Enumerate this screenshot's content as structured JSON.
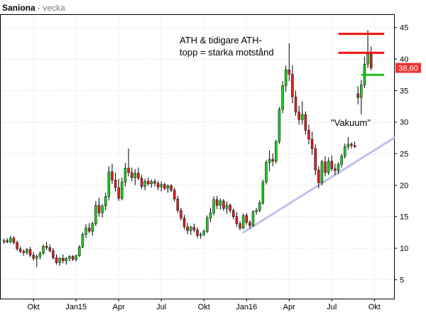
{
  "header": {
    "name": "Saniona",
    "separator": " - ",
    "period": "vecka"
  },
  "chart_data": {
    "type": "candlestick",
    "y_ticks": [
      5,
      10,
      15,
      20,
      25,
      30,
      35,
      40,
      45
    ],
    "ylim": [
      2,
      47
    ],
    "x_ticks": [
      {
        "label": "Okt",
        "week": 10
      },
      {
        "label": "Jan15",
        "week": 23
      },
      {
        "label": "Apr",
        "week": 36
      },
      {
        "label": "Jul",
        "week": 49
      },
      {
        "label": "Okt",
        "week": 62
      },
      {
        "label": "Jan16",
        "week": 75
      },
      {
        "label": "Apr",
        "week": 88
      },
      {
        "label": "Jul",
        "week": 101
      },
      {
        "label": "Okt",
        "week": 114
      }
    ],
    "xlim": [
      0,
      120
    ],
    "last_price": "38,60",
    "colors": {
      "up": "#22cc22",
      "down": "#dd2222",
      "resistance": "#ee1111",
      "support": "#22bb22",
      "trend": "#c0c0ee",
      "price_tag": "#ee3333"
    },
    "candles": [
      [
        11.0,
        11.5,
        10.7,
        11.2
      ],
      [
        11.2,
        11.6,
        10.8,
        11.0
      ],
      [
        11.0,
        12.0,
        10.8,
        11.6
      ],
      [
        11.6,
        11.9,
        10.6,
        10.9
      ],
      [
        10.9,
        11.2,
        9.6,
        9.9
      ],
      [
        9.9,
        10.3,
        9.2,
        9.5
      ],
      [
        9.5,
        9.8,
        8.8,
        9.3
      ],
      [
        9.3,
        10.0,
        9.0,
        9.8
      ],
      [
        9.8,
        10.2,
        8.6,
        8.9
      ],
      [
        8.9,
        9.4,
        8.0,
        8.4
      ],
      [
        8.4,
        9.0,
        7.0,
        8.7
      ],
      [
        8.7,
        9.5,
        8.2,
        9.2
      ],
      [
        9.2,
        10.6,
        9.0,
        10.3
      ],
      [
        10.3,
        11.0,
        9.7,
        10.1
      ],
      [
        10.1,
        10.6,
        9.3,
        9.6
      ],
      [
        9.6,
        10.0,
        8.2,
        8.5
      ],
      [
        8.5,
        9.0,
        7.4,
        7.7
      ],
      [
        7.7,
        8.6,
        7.2,
        8.4
      ],
      [
        8.4,
        9.0,
        7.6,
        8.0
      ],
      [
        8.0,
        8.6,
        7.4,
        8.4
      ],
      [
        8.4,
        8.9,
        7.9,
        8.7
      ],
      [
        8.7,
        8.9,
        8.0,
        8.2
      ],
      [
        8.2,
        9.0,
        7.9,
        8.8
      ],
      [
        8.8,
        10.5,
        8.6,
        10.2
      ],
      [
        10.2,
        12.5,
        10.0,
        12.2
      ],
      [
        12.2,
        13.8,
        11.6,
        13.2
      ],
      [
        13.2,
        14.0,
        12.4,
        12.7
      ],
      [
        12.7,
        14.2,
        12.0,
        13.9
      ],
      [
        13.9,
        17.5,
        13.5,
        16.8
      ],
      [
        16.8,
        18.0,
        15.0,
        15.6
      ],
      [
        15.6,
        17.0,
        14.9,
        16.7
      ],
      [
        16.7,
        18.8,
        16.0,
        18.2
      ],
      [
        18.2,
        23.0,
        17.6,
        22.1
      ],
      [
        22.1,
        23.4,
        20.2,
        20.8
      ],
      [
        20.8,
        22.0,
        19.0,
        19.6
      ],
      [
        19.6,
        21.0,
        17.5,
        17.9
      ],
      [
        17.9,
        21.2,
        17.6,
        20.5
      ],
      [
        20.5,
        23.5,
        19.8,
        22.7
      ],
      [
        22.7,
        25.8,
        21.4,
        22.0
      ],
      [
        22.0,
        22.8,
        20.6,
        21.2
      ],
      [
        21.2,
        22.5,
        20.0,
        21.9
      ],
      [
        21.9,
        22.8,
        20.8,
        21.1
      ],
      [
        21.1,
        21.6,
        19.4,
        19.8
      ],
      [
        19.8,
        21.0,
        19.2,
        20.6
      ],
      [
        20.6,
        21.2,
        19.9,
        20.2
      ],
      [
        20.2,
        20.9,
        19.6,
        20.6
      ],
      [
        20.6,
        21.0,
        19.8,
        20.3
      ],
      [
        20.3,
        20.7,
        19.2,
        19.7
      ],
      [
        19.7,
        20.6,
        19.0,
        20.1
      ],
      [
        20.1,
        20.4,
        19.2,
        19.5
      ],
      [
        19.5,
        20.1,
        18.8,
        19.9
      ],
      [
        19.9,
        20.2,
        18.9,
        19.2
      ],
      [
        19.2,
        19.6,
        17.4,
        17.8
      ],
      [
        17.8,
        18.3,
        15.6,
        16.0
      ],
      [
        16.0,
        16.4,
        14.4,
        14.8
      ],
      [
        14.8,
        15.3,
        13.0,
        13.4
      ],
      [
        13.4,
        14.0,
        12.2,
        12.8
      ],
      [
        12.8,
        13.6,
        12.1,
        13.3
      ],
      [
        13.3,
        13.9,
        12.5,
        12.9
      ],
      [
        12.9,
        13.3,
        11.6,
        12.0
      ],
      [
        12.0,
        12.5,
        11.5,
        12.2
      ],
      [
        12.2,
        13.0,
        11.9,
        12.7
      ],
      [
        12.7,
        15.2,
        12.4,
        14.8
      ],
      [
        14.8,
        16.4,
        14.1,
        15.6
      ],
      [
        15.6,
        18.2,
        15.2,
        17.7
      ],
      [
        17.7,
        18.3,
        16.2,
        16.8
      ],
      [
        16.8,
        17.9,
        16.1,
        17.5
      ],
      [
        17.5,
        17.8,
        15.9,
        16.3
      ],
      [
        16.3,
        17.4,
        15.5,
        16.8
      ],
      [
        16.8,
        17.1,
        15.6,
        16.0
      ],
      [
        16.0,
        16.3,
        14.6,
        15.0
      ],
      [
        15.0,
        15.7,
        13.4,
        13.9
      ],
      [
        13.9,
        14.3,
        12.8,
        13.2
      ],
      [
        13.2,
        15.5,
        13.0,
        15.2
      ],
      [
        15.2,
        15.6,
        13.7,
        14.1
      ],
      [
        14.1,
        14.4,
        13.1,
        13.6
      ],
      [
        13.6,
        16.0,
        13.4,
        15.8
      ],
      [
        15.8,
        16.4,
        15.3,
        16.0
      ],
      [
        16.0,
        17.6,
        15.7,
        17.2
      ],
      [
        17.2,
        20.9,
        16.9,
        20.5
      ],
      [
        20.5,
        24.0,
        20.1,
        23.6
      ],
      [
        23.6,
        25.5,
        22.2,
        24.1
      ],
      [
        24.1,
        25.0,
        23.0,
        23.8
      ],
      [
        23.8,
        27.2,
        23.4,
        26.9
      ],
      [
        26.9,
        32.4,
        26.5,
        32.0
      ],
      [
        32.0,
        36.5,
        31.4,
        35.8
      ],
      [
        35.8,
        39.0,
        34.8,
        38.3
      ],
      [
        38.3,
        42.5,
        36.5,
        37.6
      ],
      [
        37.6,
        39.0,
        33.0,
        34.0
      ],
      [
        34.0,
        35.0,
        31.0,
        31.6
      ],
      [
        31.6,
        32.6,
        29.6,
        30.4
      ],
      [
        30.4,
        33.3,
        29.6,
        31.2
      ],
      [
        31.2,
        31.7,
        28.0,
        28.7
      ],
      [
        28.7,
        29.6,
        26.5,
        27.3
      ],
      [
        27.3,
        28.5,
        24.8,
        25.8
      ],
      [
        25.8,
        26.5,
        21.6,
        22.4
      ],
      [
        22.4,
        23.0,
        19.5,
        20.4
      ],
      [
        20.4,
        24.0,
        20.0,
        23.7
      ],
      [
        23.7,
        24.6,
        21.4,
        22.0
      ],
      [
        22.0,
        24.4,
        21.6,
        23.8
      ],
      [
        23.8,
        24.7,
        22.2,
        22.6
      ],
      [
        22.6,
        23.4,
        21.6,
        22.3
      ],
      [
        22.3,
        23.6,
        21.8,
        23.3
      ],
      [
        23.3,
        25.0,
        22.8,
        24.6
      ],
      [
        24.6,
        26.6,
        24.2,
        26.1
      ],
      [
        26.1,
        27.6,
        25.6,
        26.5
      ],
      [
        26.5,
        26.8,
        25.8,
        26.3
      ],
      [
        26.3,
        26.9,
        25.9,
        26.1
      ],
      [
        34.5,
        35.7,
        32.8,
        33.9
      ],
      [
        33.9,
        36.7,
        31.2,
        35.9
      ],
      [
        35.9,
        40.4,
        35.4,
        39.2
      ],
      [
        39.2,
        44.6,
        38.6,
        40.8
      ],
      [
        40.8,
        42.0,
        38.2,
        38.6
      ]
    ],
    "lines": {
      "resistance_ath": {
        "x1": 103,
        "x2": 117,
        "y": 44
      },
      "resistance_prev": {
        "x1": 103,
        "x2": 117,
        "y": 41
      },
      "support": {
        "x1": 110,
        "x2": 117,
        "y": 37.5
      },
      "trendline": {
        "x1": 74,
        "y1": 12.5,
        "x2": 120,
        "y2": 27.5
      }
    },
    "annotations": {
      "resistance_note_line1": "ATH & tidigare ATH-",
      "resistance_note_line2": "topp = starka motstånd",
      "vacuum_note": "\"Vakuum\""
    }
  }
}
